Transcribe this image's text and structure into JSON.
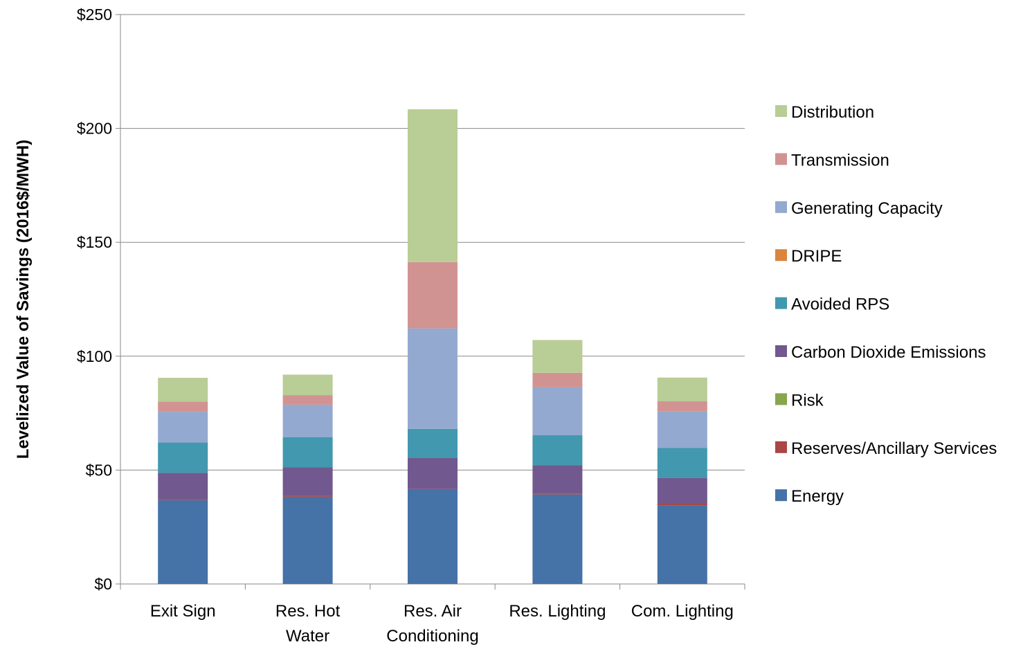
{
  "chart_data": {
    "type": "bar",
    "stacked": true,
    "title": "",
    "xlabel": "",
    "ylabel": "Levelized Value of Savings (2016$/MWH)",
    "ylim": [
      0,
      250
    ],
    "ytick_step": 50,
    "ytick_labels": [
      "$0",
      "$50",
      "$100",
      "$150",
      "$200",
      "$250"
    ],
    "grid": "horizontal",
    "legend_position": "right",
    "categories": [
      [
        "Exit Sign"
      ],
      [
        "Res. Hot",
        "Water"
      ],
      [
        "Res. Air",
        "Conditioning"
      ],
      [
        "Res. Lighting"
      ],
      [
        "Com. Lighting"
      ]
    ],
    "series": [
      {
        "name": "Energy",
        "color": "#4572A7",
        "values": [
          36.8,
          38.3,
          41.3,
          39.3,
          34.6
        ]
      },
      {
        "name": "Reserves/Ancillary Services",
        "color": "#AA4643",
        "values": [
          0.4,
          0.4,
          0.4,
          0.4,
          0.8
        ]
      },
      {
        "name": "Risk",
        "color": "#89A54E",
        "values": [
          0.0,
          0.0,
          0.0,
          0.0,
          0.0
        ]
      },
      {
        "name": "Carbon Dioxide Emissions",
        "color": "#71588F",
        "values": [
          11.6,
          12.5,
          13.6,
          12.5,
          11.1
        ]
      },
      {
        "name": "Avoided RPS",
        "color": "#4198AF",
        "values": [
          13.3,
          13.3,
          12.8,
          13.1,
          13.2
        ]
      },
      {
        "name": "DRIPE",
        "color": "#DB843D",
        "values": [
          0.0,
          0.0,
          0.0,
          0.0,
          0.0
        ]
      },
      {
        "name": "Generating Capacity",
        "color": "#93A9CF",
        "values": [
          13.5,
          14.2,
          44.1,
          21.1,
          16.0
        ]
      },
      {
        "name": "Transmission",
        "color": "#D19392",
        "values": [
          4.5,
          4.2,
          29.1,
          6.3,
          4.5
        ]
      },
      {
        "name": "Distribution",
        "color": "#B9CD96",
        "values": [
          10.4,
          9.0,
          67.1,
          14.4,
          10.4
        ]
      }
    ]
  }
}
